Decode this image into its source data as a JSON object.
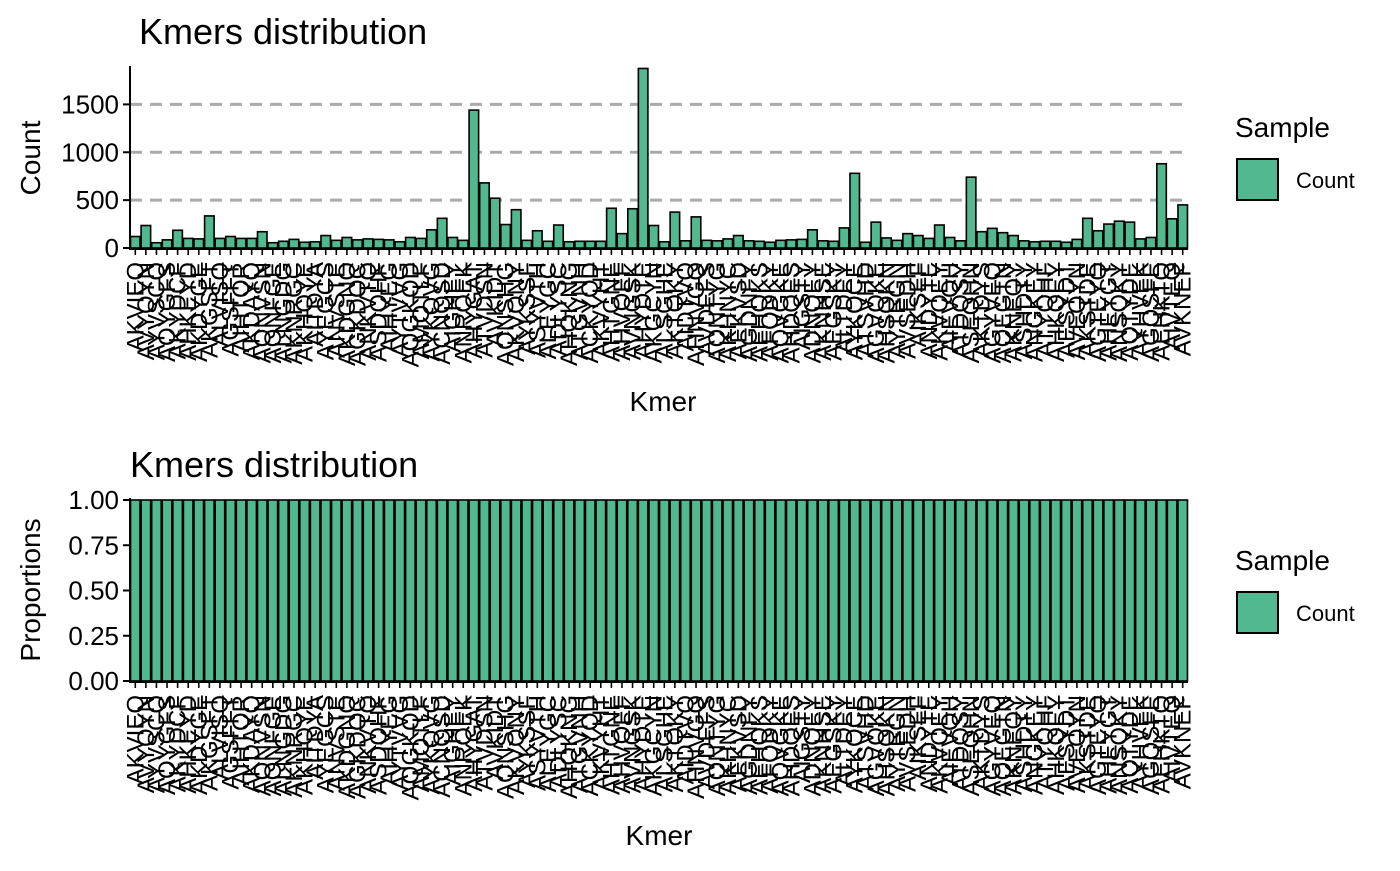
{
  "chart_data": [
    {
      "type": "bar",
      "title": "Kmers distribution",
      "xlabel": "Kmer",
      "ylabel": "Count",
      "ylim": [
        0,
        1880
      ],
      "yticks": [
        "0",
        "500",
        "1000",
        "1500"
      ],
      "ytick_values": [
        0,
        500,
        1000,
        1500
      ],
      "grid": "horizontal dashed at major y ticks",
      "legend": {
        "title": "Sample",
        "entries": [
          "Count"
        ],
        "placement": "right"
      },
      "series": [
        {
          "name": "Count",
          "color": "#52B88F",
          "values": [
            120,
            235,
            55,
            85,
            185,
            100,
            95,
            335,
            100,
            120,
            100,
            100,
            170,
            55,
            70,
            90,
            60,
            65,
            130,
            80,
            110,
            85,
            95,
            90,
            85,
            65,
            110,
            100,
            190,
            310,
            110,
            80,
            1440,
            680,
            520,
            245,
            400,
            80,
            180,
            70,
            240,
            65,
            70,
            70,
            70,
            415,
            150,
            410,
            1875,
            235,
            65,
            375,
            75,
            325,
            80,
            75,
            95,
            130,
            75,
            70,
            60,
            80,
            85,
            90,
            190,
            75,
            70,
            210,
            780,
            60,
            270,
            105,
            80,
            150,
            130,
            100,
            240,
            110,
            75,
            740,
            170,
            205,
            160,
            130,
            75,
            65,
            70,
            70,
            60,
            90,
            310,
            180,
            250,
            280,
            270,
            95,
            110,
            880,
            305,
            450
          ]
        }
      ],
      "categories": [
        "AKVIEQ",
        "AVYQYN",
        "AYVSCQ",
        "AQYGFS",
        "AKYDCF",
        "AHKEYD",
        "AKDYGE",
        "AKGSFT",
        "ALVISQ",
        "AGSFFT",
        "AIHTQR",
        "AKDAYQ",
        "AQNVSN",
        "AQNFGE",
        "ALNGDG",
        "AKNRGC",
        "AKHQYE",
        "AITDYA",
        "AYEGCS",
        "ANVSTE",
        "AKDGNQ",
        "AGKDQC",
        "ANKVTQ",
        "ASDQHF",
        "AIHYEG",
        "AYTVVG",
        "AQGKQD",
        "AMQTLF",
        "AYKQVG",
        "ACNQSD",
        "AIGHEY",
        "ANRQEK",
        "AHYGAT",
        "ATVDSN",
        "AVKIDT",
        "AQNSHG",
        "AKVQNY",
        "AYKSSF",
        "ASYVTH",
        "ALEYGC",
        "ADLYSC",
        "AHQKNG",
        "ATGVNH",
        "ACKYQD",
        "AKVYHT",
        "AHTGNE",
        "AHVQEF",
        "AVNGSK",
        "AHYDTE",
        "AKGCYN",
        "ALSGHE",
        "AKTQKY",
        "AIDTVQ",
        "AHNVGQ",
        "AVDEFS",
        "AQNTYG",
        "AKHNYC",
        "AEKVSD",
        "AGDNFY",
        "AEHQKS",
        "AFQDKY",
        "AQVGKE",
        "AHDQES",
        "AIGSTY",
        "ADNQEY",
        "AKNHSE",
        "AEGSKY",
        "ALTDEY",
        "AYKQCE",
        "ATSVHD",
        "AGVQKE",
        "AHSQKN",
        "AYTEGN",
        "AVSEDH",
        "AIKSEF",
        "ANDYTE",
        "AKVQEY",
        "AIEVQH",
        "ATDQSY",
        "ASEQHN",
        "AKTDYS",
        "AGYVEQ",
        "AQEGTN",
        "AKNEQY",
        "ASHDTY",
        "ANGKEY",
        "ATYQHF",
        "AHKQEY",
        "AESYDT",
        "AVEQYN",
        "AKSTDE",
        "AGTEYQ",
        "AHEYGT",
        "ANSQKY",
        "AQTYDE",
        "AYHVEK",
        "AGQSFE",
        "AEHKTQ",
        "AIVTEQ",
        "AVKNEF"
      ]
    },
    {
      "type": "bar",
      "title": "Kmers distribution",
      "xlabel": "Kmer",
      "ylabel": "Proportions",
      "ylim": [
        0,
        1
      ],
      "yticks": [
        "0.00",
        "0.25",
        "0.50",
        "0.75",
        "1.00"
      ],
      "ytick_values": [
        0,
        0.25,
        0.5,
        0.75,
        1
      ],
      "grid": "none",
      "legend": {
        "title": "Sample",
        "entries": [
          "Count"
        ],
        "placement": "right"
      },
      "series": [
        {
          "name": "Count",
          "color": "#52B88F",
          "values": [
            1,
            1,
            1,
            1,
            1,
            1,
            1,
            1,
            1,
            1,
            1,
            1,
            1,
            1,
            1,
            1,
            1,
            1,
            1,
            1,
            1,
            1,
            1,
            1,
            1,
            1,
            1,
            1,
            1,
            1,
            1,
            1,
            1,
            1,
            1,
            1,
            1,
            1,
            1,
            1,
            1,
            1,
            1,
            1,
            1,
            1,
            1,
            1,
            1,
            1,
            1,
            1,
            1,
            1,
            1,
            1,
            1,
            1,
            1,
            1,
            1,
            1,
            1,
            1,
            1,
            1,
            1,
            1,
            1,
            1,
            1,
            1,
            1,
            1,
            1,
            1,
            1,
            1,
            1,
            1,
            1,
            1,
            1,
            1,
            1,
            1,
            1,
            1,
            1,
            1,
            1,
            1,
            1,
            1,
            1,
            1,
            1,
            1,
            1,
            1
          ]
        }
      ],
      "categories": [
        "AKVIEQ",
        "AVYQYN",
        "AYVSCQ",
        "AQYGFS",
        "AKYDCF",
        "AHKEYD",
        "AKDYGE",
        "AKGSFT",
        "ALVISQ",
        "AGSFFT",
        "AIHTQR",
        "AKDAYQ",
        "AQNVSN",
        "AQNFGE",
        "ALNGDG",
        "AKNRGC",
        "AKHQYE",
        "AITDYA",
        "AYEGCS",
        "ANVSTE",
        "AKDGNQ",
        "AGKDQC",
        "ANKVTQ",
        "ASDQHF",
        "AIHYEG",
        "AYTVVG",
        "AQGKQD",
        "AMQTLF",
        "AYKQVG",
        "ACNQSD",
        "AIGHEY",
        "ANRQEK",
        "AHYGAT",
        "ATVDSN",
        "AVKIDT",
        "AQNSHG",
        "AKVQNY",
        "AYKSSF",
        "ASYVTH",
        "ALEYGC",
        "ADLYSC",
        "AHQKNG",
        "ATGVNH",
        "ACKYQD",
        "AKVYHT",
        "AHTGNE",
        "AHVQEF",
        "AVNGSK",
        "AHYDTE",
        "AKGCYN",
        "ALSGHE",
        "AKTQKY",
        "AIDTVQ",
        "AHNVGQ",
        "AVDEFS",
        "AQNTYG",
        "AKHNYC",
        "AEKVSD",
        "AGDNFY",
        "AEHQKS",
        "AFQDKY",
        "AQVGKE",
        "AHDQES",
        "AIGSTY",
        "ADNQEY",
        "AKNHSE",
        "AEGSKY",
        "ALTDEY",
        "AYKQCE",
        "ATSVHD",
        "AGVQKE",
        "AHSQKN",
        "AYTEGN",
        "AVSEDH",
        "AIKSEF",
        "ANDYTE",
        "AKVQEY",
        "AIEVQH",
        "ATDQSY",
        "ASEQHN",
        "AKTDYS",
        "AGYVEQ",
        "AQEGTN",
        "AKNEQY",
        "ASHDTY",
        "ANGKEY",
        "ATYQHF",
        "AHKQEY",
        "AESYDT",
        "AVEQYN",
        "AKSTDE",
        "AGTEYQ",
        "AHEYGT",
        "ANSQKY",
        "AQTYDE",
        "AYHVEK",
        "AGQSFE",
        "AEHKTQ",
        "AIVTEQ",
        "AVKNEF"
      ]
    }
  ]
}
